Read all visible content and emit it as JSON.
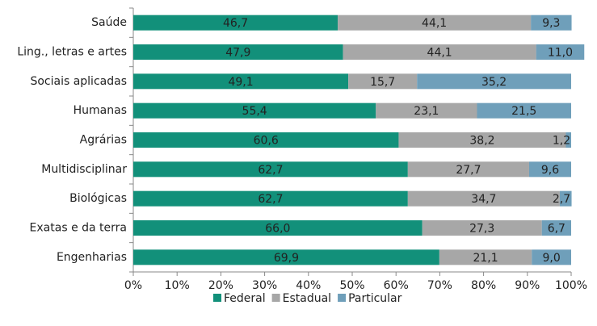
{
  "chart_data": {
    "type": "stacked_barh",
    "categories": [
      "Saúde",
      "Ling., letras e artes",
      "Sociais aplicadas",
      "Humanas",
      "Agrárias",
      "Multidisciplinar",
      "Biológicas",
      "Exatas e da terra",
      "Engenharias"
    ],
    "series": [
      {
        "name": "Federal",
        "color": "#12907a",
        "values": [
          46.7,
          47.9,
          49.1,
          55.4,
          60.6,
          62.7,
          62.7,
          66.0,
          69.9
        ],
        "value_labels": [
          "46,7",
          "47,9",
          "49,1",
          "55,4",
          "60,6",
          "62,7",
          "62,7",
          "66,0",
          "69,9"
        ]
      },
      {
        "name": "Estadual",
        "color": "#a7a7a7",
        "values": [
          44.1,
          44.1,
          15.7,
          23.1,
          38.2,
          27.7,
          34.7,
          27.3,
          21.1
        ],
        "value_labels": [
          "44,1",
          "44,1",
          "15,7",
          "23,1",
          "38,2",
          "27,7",
          "34,7",
          "27,3",
          "21,1"
        ]
      },
      {
        "name": "Particular",
        "color": "#6f9fba",
        "values": [
          9.3,
          11.0,
          35.2,
          21.5,
          1.2,
          9.6,
          2.7,
          6.7,
          9.0
        ],
        "value_labels": [
          "9,3",
          "11,0",
          "35,2",
          "21,5",
          "1,2",
          "9,6",
          "2,7",
          "6,7",
          "9,0"
        ]
      }
    ],
    "xlim": [
      0,
      100
    ],
    "xticks": [
      {
        "value": 0,
        "label": "0%"
      },
      {
        "value": 10,
        "label": "10%"
      },
      {
        "value": 20,
        "label": "20%"
      },
      {
        "value": 30,
        "label": "30%"
      },
      {
        "value": 40,
        "label": "40%"
      },
      {
        "value": 50,
        "label": "50%"
      },
      {
        "value": 60,
        "label": "60%"
      },
      {
        "value": 70,
        "label": "70%"
      },
      {
        "value": 80,
        "label": "80%"
      },
      {
        "value": 90,
        "label": "90%"
      },
      {
        "value": 100,
        "label": "100%"
      }
    ],
    "legend": "bottom"
  }
}
